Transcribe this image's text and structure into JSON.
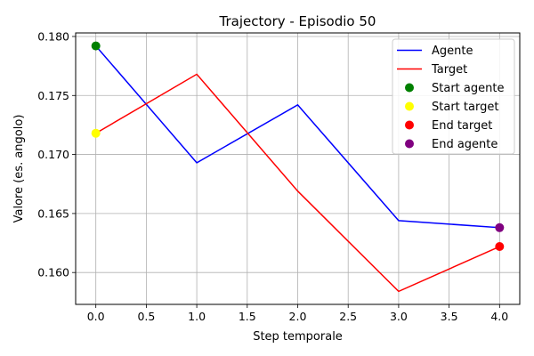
{
  "chart_data": {
    "type": "line",
    "title": "Trajectory - Episodio 50",
    "xlabel": "Step temporale",
    "ylabel": "Valore (es. angolo)",
    "x": [
      0,
      1,
      2,
      3,
      4
    ],
    "xlim": [
      -0.2,
      4.2
    ],
    "ylim": [
      0.1573,
      0.1803
    ],
    "xticks": [
      "0.0",
      "0.5",
      "1.0",
      "1.5",
      "2.0",
      "2.5",
      "3.0",
      "3.5",
      "4.0"
    ],
    "yticks": [
      "0.160",
      "0.165",
      "0.170",
      "0.175",
      "0.180"
    ],
    "grid": true,
    "legend_position": "top-right",
    "series": [
      {
        "name": "Agente",
        "values": [
          0.1792,
          0.1693,
          0.1742,
          0.1644,
          0.1638
        ],
        "color": "#0000ff"
      },
      {
        "name": "Target",
        "values": [
          0.1718,
          0.1768,
          0.1669,
          0.1584,
          0.1622
        ],
        "color": "#ff0000"
      }
    ],
    "markers": [
      {
        "name": "Start agente",
        "x": 0,
        "y": 0.1792,
        "color": "#008000"
      },
      {
        "name": "Start target",
        "x": 0,
        "y": 0.1718,
        "color": "#ffff00"
      },
      {
        "name": "End target",
        "x": 4,
        "y": 0.1622,
        "color": "#ff0000"
      },
      {
        "name": "End agente",
        "x": 4,
        "y": 0.1638,
        "color": "#800080"
      }
    ]
  }
}
